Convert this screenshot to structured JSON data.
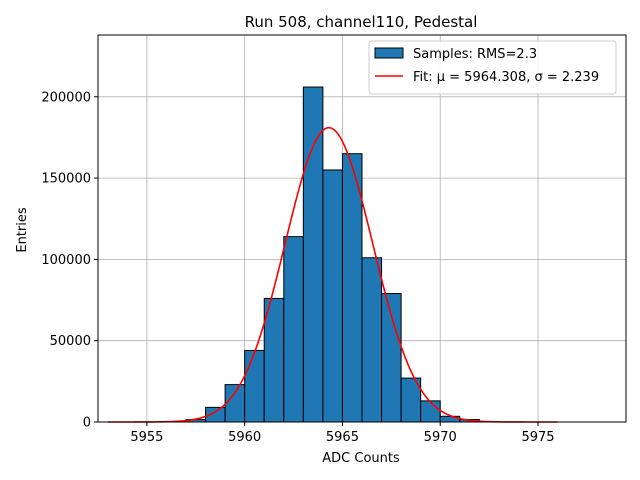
{
  "chart_data": {
    "type": "bar",
    "title": "Run 508, channel110, Pedestal",
    "xlabel": "ADC Counts",
    "ylabel": "Entries",
    "xlim": [
      5952.5,
      5979.5
    ],
    "ylim": [
      0,
      238000
    ],
    "xticks": [
      5955,
      5960,
      5965,
      5970,
      5975
    ],
    "yticks": [
      0,
      50000,
      100000,
      150000,
      200000
    ],
    "grid": true,
    "legend_position": "upper-right",
    "histogram": {
      "name": "Samples: RMS=2.3",
      "bin_width": 1,
      "bins": [
        {
          "left": 5957,
          "value": 1500
        },
        {
          "left": 5958,
          "value": 9000
        },
        {
          "left": 5959,
          "value": 23000
        },
        {
          "left": 5960,
          "value": 44000
        },
        {
          "left": 5961,
          "value": 76000
        },
        {
          "left": 5962,
          "value": 114000
        },
        {
          "left": 5963,
          "value": 206000
        },
        {
          "left": 5964,
          "value": 155000
        },
        {
          "left": 5965,
          "value": 165000
        },
        {
          "left": 5966,
          "value": 101000
        },
        {
          "left": 5967,
          "value": 79000
        },
        {
          "left": 5968,
          "value": 27000
        },
        {
          "left": 5969,
          "value": 13000
        },
        {
          "left": 5970,
          "value": 3500
        },
        {
          "left": 5971,
          "value": 1500
        }
      ]
    },
    "fit": {
      "name": "Fit: μ = 5964.308, σ = 2.239",
      "mu": 5964.308,
      "sigma": 2.239,
      "amplitude": 181000,
      "x_range": [
        5953,
        5976
      ]
    },
    "colors": {
      "bar_fill": "#1f77b4",
      "bar_edge": "#000000",
      "fit_line": "#ff0000",
      "grid": "#b0b0b0"
    }
  }
}
